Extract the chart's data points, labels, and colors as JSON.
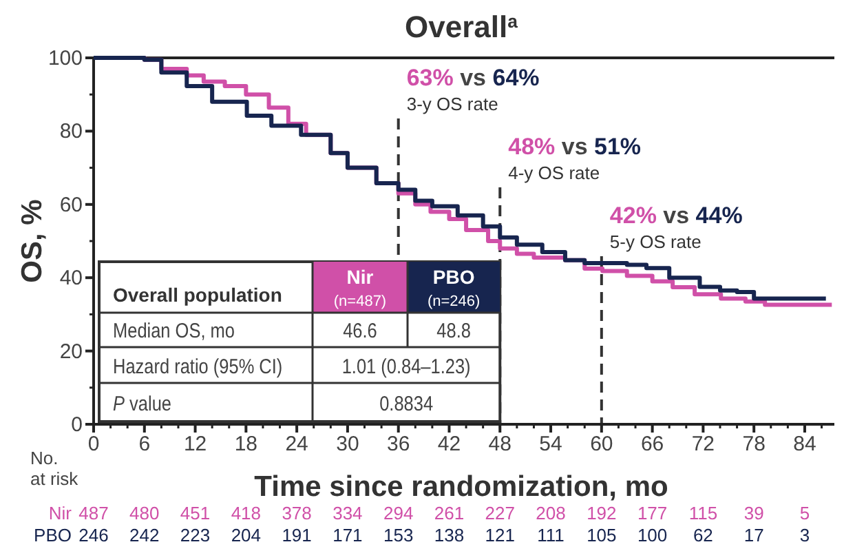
{
  "chart_data": {
    "type": "step",
    "title": "Overall$^{a}$",
    "xlabel": "Time since randomization, mo",
    "ylabel": "OS, %",
    "xlim": [
      0,
      87.5
    ],
    "xticks": [
      0,
      6,
      12,
      18,
      24,
      30,
      36,
      42,
      48,
      54,
      60,
      66,
      72,
      78,
      84
    ],
    "ylim": [
      0,
      100
    ],
    "yticks": [
      0,
      20,
      40,
      60,
      80,
      100
    ],
    "grid": false,
    "line_style": "solid",
    "series": [
      {
        "name": "Nir",
        "color": "#d050a8",
        "x": [
          0,
          6,
          8,
          11,
          13,
          15.5,
          18,
          20.7,
          23,
          25.1,
          28,
          30,
          33.4,
          36,
          38,
          39.8,
          42,
          44,
          46.6,
          48,
          50,
          52,
          55.7,
          58,
          60.1,
          63,
          66,
          68.4,
          71,
          74.1,
          77,
          79.3,
          83,
          87.2
        ],
        "values": [
          100,
          99.5,
          97,
          95.2,
          93.5,
          92.3,
          90,
          86.4,
          82,
          79,
          74,
          70,
          65.8,
          63,
          60,
          58,
          56,
          53,
          50,
          48,
          46.5,
          45.5,
          44.8,
          42.5,
          41.8,
          40.5,
          39,
          37.4,
          35.5,
          34.3,
          33.5,
          32.6,
          32.6,
          32.6
        ]
      },
      {
        "name": "PBO",
        "color": "#17254f",
        "x": [
          0,
          6,
          8,
          11,
          14,
          18.1,
          21,
          24.5,
          28,
          30,
          33.4,
          36,
          38,
          40,
          43,
          46,
          48,
          50,
          53,
          55.7,
          58,
          60,
          63,
          65.3,
          68,
          71.6,
          74,
          76,
          78,
          82,
          86.5
        ],
        "values": [
          100,
          99.5,
          96,
          92.3,
          88,
          84.2,
          81.5,
          79,
          74,
          70,
          65.8,
          64,
          61,
          59.5,
          57,
          54,
          51,
          49,
          47,
          44.8,
          44,
          44,
          43.5,
          42.6,
          40,
          37.5,
          36.5,
          36.1,
          34.3,
          34.3,
          34.3
        ]
      }
    ],
    "ref_lines": [
      {
        "axis": "x",
        "value": 36,
        "label": "3-y OS rate",
        "line_style": "dashed",
        "color": "#333333"
      },
      {
        "axis": "x",
        "value": 48,
        "label": "4-y OS rate",
        "line_style": "dashed",
        "color": "#333333"
      },
      {
        "axis": "x",
        "value": 60,
        "label": "5-y OS rate",
        "line_style": "dashed",
        "color": "#333333"
      }
    ],
    "annotations": [
      "63% vs 64%",
      "48% vs 51%",
      "42% vs 44%",
      "Overall population",
      "(n=487)",
      "(n=246)",
      "Median OS, mo",
      "46.6",
      "48.8",
      "Hazard ratio (95% CI)",
      "1.01 (0.84–1.23)",
      "P value",
      "0.8834",
      "No. at risk",
      "487 480 451 418 378 334 294 261 227 208 192 177 115 39 5",
      "246 242 223 204 191 171 153 138 121 111 105 100 62 17 3"
    ]
  }
}
